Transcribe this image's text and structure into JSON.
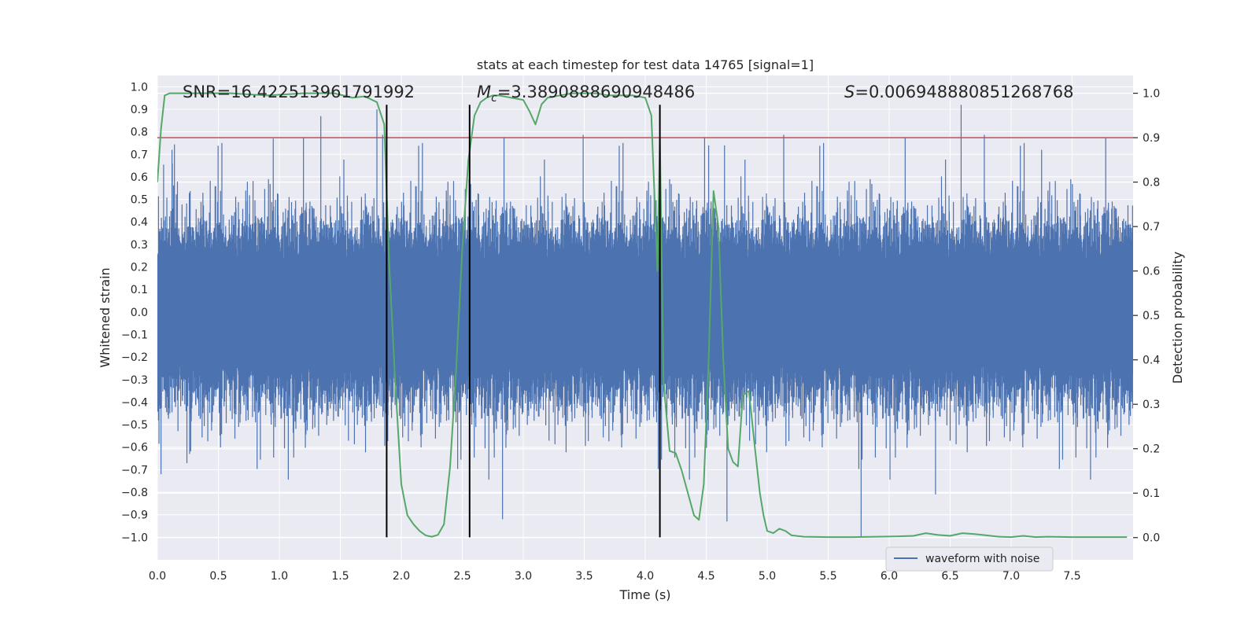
{
  "chart_data": {
    "type": "line",
    "title": "stats at each timestep for test data 14765 [signal=1]",
    "xlabel": "Time (s)",
    "ylabel": "Whitened strain",
    "y2label": "Detection probability",
    "xlim": [
      0.0,
      8.0
    ],
    "ylim": [
      -1.1,
      1.05
    ],
    "y2lim": [
      -0.05,
      1.04
    ],
    "x_ticks": [
      0.0,
      0.5,
      1.0,
      1.5,
      2.0,
      2.5,
      3.0,
      3.5,
      4.0,
      4.5,
      5.0,
      5.5,
      6.0,
      6.5,
      7.0,
      7.5
    ],
    "x_tick_labels": [
      "0.0",
      "0.5",
      "1.0",
      "1.5",
      "2.0",
      "2.5",
      "3.0",
      "3.5",
      "4.0",
      "4.5",
      "5.0",
      "5.5",
      "6.0",
      "6.5",
      "7.0",
      "7.5"
    ],
    "y_ticks": [
      1.0,
      0.9,
      0.8,
      0.7,
      0.6,
      0.5,
      0.4,
      0.3,
      0.2,
      0.1,
      0.0,
      -0.1,
      -0.2,
      -0.3,
      -0.4,
      -0.5,
      -0.6,
      -0.7,
      -0.8,
      -0.9,
      -1.0
    ],
    "y_tick_labels": [
      "1.0",
      "0.9",
      "0.8",
      "0.7",
      "0.6",
      "0.5",
      "0.4",
      "0.3",
      "0.2",
      "0.1",
      "0.0",
      "−0.1",
      "−0.2",
      "−0.3",
      "−0.4",
      "−0.5",
      "−0.6",
      "−0.7",
      "−0.8",
      "−0.9",
      "−1.0"
    ],
    "y2_ticks": [
      1.0,
      0.9,
      0.8,
      0.7,
      0.6,
      0.5,
      0.4,
      0.3,
      0.2,
      0.1,
      0.0
    ],
    "y2_tick_labels": [
      "1.0",
      "0.9",
      "0.8",
      "0.7",
      "0.6",
      "0.5",
      "0.4",
      "0.3",
      "0.2",
      "0.1",
      "0.0"
    ],
    "grid": true,
    "legend": {
      "entries": [
        "waveform with noise"
      ],
      "location": "lower-right"
    },
    "annotations": {
      "snr": "SNR=16.422513961791992",
      "mc_symbol": "M",
      "mc_sub": "c",
      "mc_value": "=3.3890888690948486",
      "s_symbol": "S",
      "s_value": "=0.006948880851268768"
    },
    "threshold": {
      "value": 0.9,
      "axis": "right",
      "color": "#c44e52"
    },
    "vlines": [
      {
        "x": 1.88,
        "ymin": -1.0,
        "ymax": 0.92
      },
      {
        "x": 2.56,
        "ymin": -1.0,
        "ymax": 0.92
      },
      {
        "x": 4.12,
        "ymin": -1.0,
        "ymax": 0.92
      }
    ],
    "series": [
      {
        "name": "waveform with noise",
        "axis": "left",
        "color": "#4c72b0",
        "representation": "dense noisy strain, sample rate ~2048 Hz, core amplitude about ±0.35 with spikes to ±0.9",
        "duration": 8.0,
        "typical_amplitude": 0.35,
        "max_spike": 0.92,
        "min_spike": -1.0
      },
      {
        "name": "detection probability",
        "axis": "right",
        "color": "#55a868",
        "x": [
          0.0,
          0.03,
          0.06,
          0.1,
          0.3,
          0.6,
          0.9,
          1.2,
          1.45,
          1.6,
          1.7,
          1.8,
          1.86,
          1.9,
          1.95,
          2.0,
          2.05,
          2.1,
          2.15,
          2.2,
          2.25,
          2.3,
          2.35,
          2.4,
          2.45,
          2.5,
          2.55,
          2.6,
          2.65,
          2.7,
          2.75,
          2.8,
          2.9,
          3.0,
          3.05,
          3.1,
          3.15,
          3.2,
          3.3,
          3.4,
          3.5,
          3.6,
          3.7,
          3.8,
          3.9,
          4.0,
          4.05,
          4.1,
          4.12,
          4.15,
          4.2,
          4.25,
          4.3,
          4.35,
          4.4,
          4.44,
          4.48,
          4.52,
          4.56,
          4.6,
          4.64,
          4.68,
          4.72,
          4.76,
          4.8,
          4.85,
          4.9,
          4.94,
          4.97,
          5.0,
          5.05,
          5.1,
          5.15,
          5.2,
          5.3,
          5.5,
          5.7,
          5.9,
          6.1,
          6.2,
          6.3,
          6.4,
          6.5,
          6.6,
          6.7,
          6.9,
          7.0,
          7.1,
          7.2,
          7.3,
          7.5,
          7.7,
          7.95
        ],
        "values": [
          0.8,
          0.92,
          0.995,
          1.0,
          1.0,
          1.0,
          0.995,
          1.0,
          1.0,
          0.99,
          0.993,
          0.98,
          0.93,
          0.62,
          0.35,
          0.12,
          0.05,
          0.03,
          0.015,
          0.005,
          0.002,
          0.006,
          0.03,
          0.16,
          0.38,
          0.65,
          0.85,
          0.95,
          0.98,
          0.99,
          0.995,
          0.995,
          0.99,
          0.985,
          0.96,
          0.93,
          0.975,
          0.99,
          0.995,
          1.0,
          1.0,
          1.0,
          0.995,
          0.995,
          0.995,
          0.99,
          0.95,
          0.6,
          0.9,
          0.35,
          0.195,
          0.19,
          0.15,
          0.1,
          0.05,
          0.04,
          0.12,
          0.4,
          0.78,
          0.7,
          0.4,
          0.2,
          0.17,
          0.16,
          0.32,
          0.33,
          0.2,
          0.1,
          0.05,
          0.015,
          0.01,
          0.02,
          0.015,
          0.005,
          0.002,
          0.001,
          0.001,
          0.002,
          0.003,
          0.004,
          0.01,
          0.006,
          0.004,
          0.01,
          0.008,
          0.002,
          0.001,
          0.004,
          0.001,
          0.002,
          0.001,
          0.001,
          0.001
        ]
      }
    ]
  }
}
